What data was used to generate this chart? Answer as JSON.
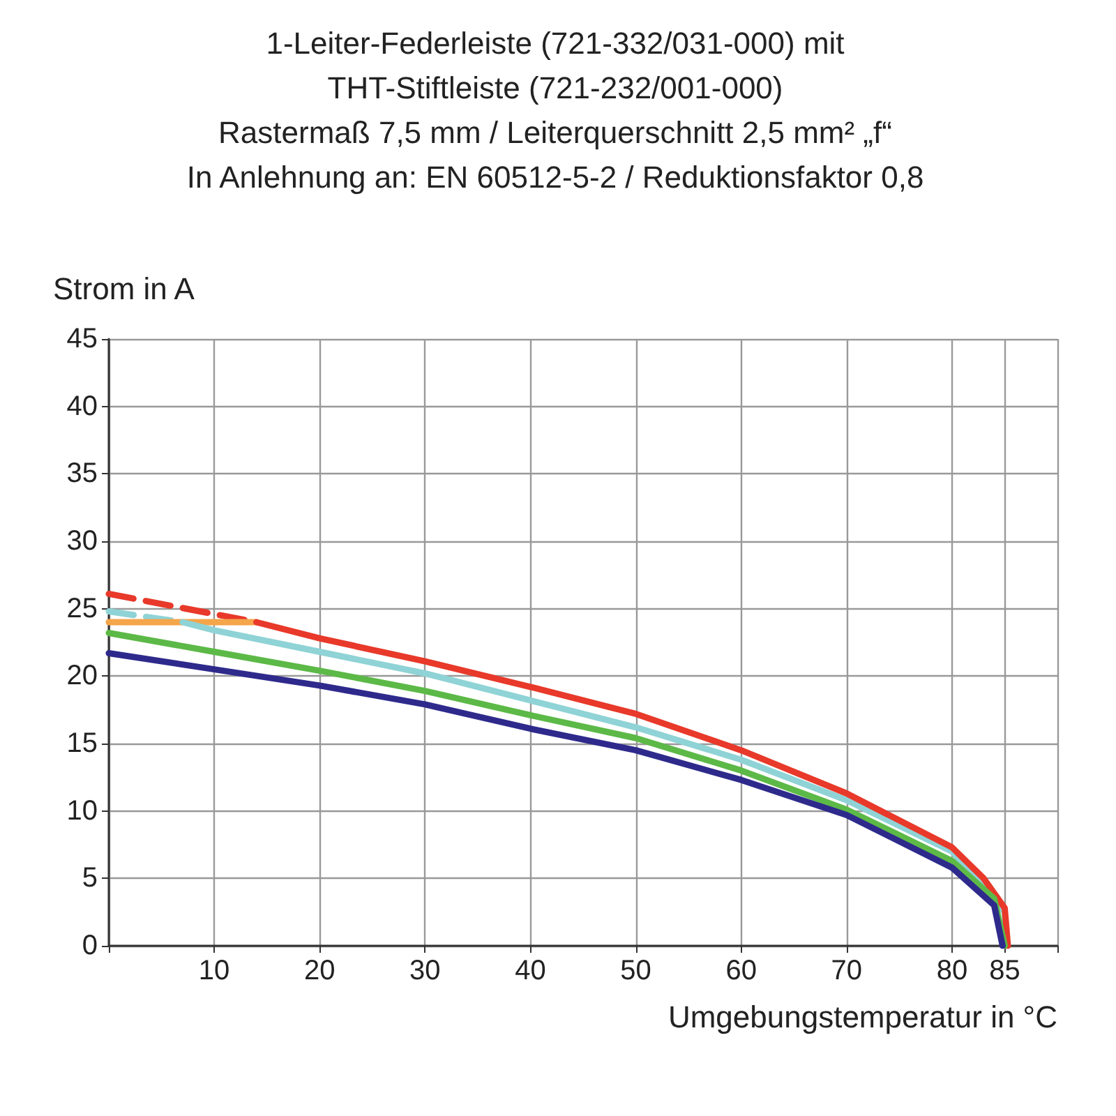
{
  "chart_data": {
    "type": "line",
    "title": "1-Leiter-Federleiste (721-332/031-000) mit\nTHT-Stiftleiste (721-232/001-000)\nRastermaß 7,5 mm / Leiterquerschnitt 2,5 mm² „f“\nIn Anlehnung an: EN 60512-5-2 / Reduktionsfaktor 0,8",
    "xlabel": "Umgebungstemperatur in °C",
    "ylabel": "Strom in A",
    "xlim": [
      0,
      90
    ],
    "ylim": [
      0,
      45
    ],
    "xticks": [
      {
        "value": 0,
        "label": null
      },
      10,
      20,
      30,
      40,
      50,
      60,
      70,
      80,
      85,
      {
        "value": 90,
        "label": null
      }
    ],
    "yticks": [
      0,
      5,
      10,
      15,
      20,
      25,
      30,
      35,
      40,
      45
    ],
    "grid": true,
    "marker": "none",
    "series": [
      {
        "color": "#e8392a",
        "line_style": "dashed",
        "x": [
          0,
          14
        ],
        "values": [
          26.1,
          24
        ]
      },
      {
        "color": "#8fd3d6",
        "line_style": "dashed",
        "x": [
          0,
          7
        ],
        "values": [
          24.8,
          24
        ]
      },
      {
        "color": "#f5a54a",
        "line_style": "solid",
        "x": [
          0,
          14
        ],
        "values": [
          24,
          24
        ]
      },
      {
        "color": "#8fd3d6",
        "line_style": "solid",
        "x": [
          7,
          10,
          20,
          30,
          40,
          50,
          60,
          70,
          80,
          85,
          85.2
        ],
        "values": [
          24,
          23.4,
          21.8,
          20.2,
          18.2,
          16.2,
          13.8,
          10.8,
          7,
          2.5,
          0
        ]
      },
      {
        "color": "#e8392a",
        "line_style": "solid",
        "x": [
          14,
          20,
          30,
          40,
          50,
          60,
          70,
          80,
          83,
          85,
          85.3
        ],
        "values": [
          24,
          22.8,
          21.1,
          19.2,
          17.2,
          14.5,
          11.3,
          7.3,
          5,
          2.8,
          0
        ]
      },
      {
        "color": "#5cb947",
        "line_style": "solid",
        "x": [
          0,
          10,
          20,
          30,
          40,
          50,
          60,
          70,
          80,
          84,
          85
        ],
        "values": [
          23.2,
          21.8,
          20.4,
          18.9,
          17.1,
          15.4,
          13,
          10.1,
          6.3,
          3.5,
          0
        ]
      },
      {
        "color": "#2e2a8c",
        "line_style": "solid",
        "x": [
          0,
          10,
          20,
          30,
          40,
          50,
          60,
          70,
          80,
          84,
          84.8
        ],
        "values": [
          21.7,
          20.5,
          19.3,
          17.9,
          16.1,
          14.5,
          12.3,
          9.7,
          5.8,
          3,
          0
        ]
      }
    ]
  }
}
